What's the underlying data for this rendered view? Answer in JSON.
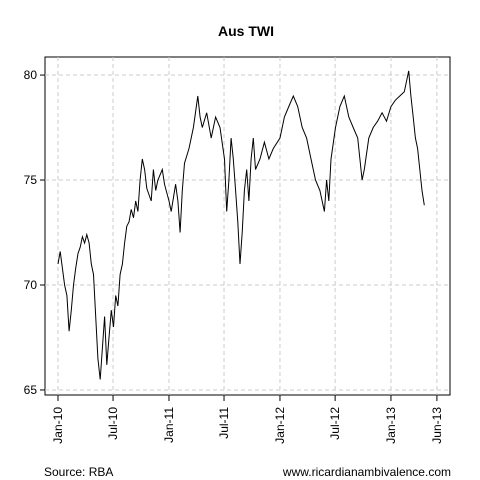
{
  "chart_data": {
    "type": "line",
    "title": "Aus TWI",
    "source": "Source: RBA",
    "credit": "www.ricardianambivalence.com",
    "x": [
      2010.0,
      2010.02,
      2010.04,
      2010.06,
      2010.08,
      2010.1,
      2010.12,
      2010.14,
      2010.16,
      2010.18,
      2010.2,
      2010.22,
      2010.24,
      2010.26,
      2010.28,
      2010.3,
      2010.32,
      2010.34,
      2010.36,
      2010.38,
      2010.4,
      2010.42,
      2010.44,
      2010.46,
      2010.48,
      2010.5,
      2010.52,
      2010.54,
      2010.56,
      2010.58,
      2010.6,
      2010.62,
      2010.64,
      2010.66,
      2010.68,
      2010.7,
      2010.72,
      2010.74,
      2010.76,
      2010.78,
      2010.8,
      2010.84,
      2010.86,
      2010.88,
      2010.9,
      2010.94,
      2010.96,
      2011.0,
      2011.02,
      2011.06,
      2011.08,
      2011.1,
      2011.12,
      2011.14,
      2011.18,
      2011.22,
      2011.26,
      2011.28,
      2011.3,
      2011.34,
      2011.38,
      2011.42,
      2011.46,
      2011.5,
      2011.52,
      2011.54,
      2011.56,
      2011.58,
      2011.6,
      2011.62,
      2011.64,
      2011.66,
      2011.68,
      2011.7,
      2011.72,
      2011.74,
      2011.76,
      2011.78,
      2011.82,
      2011.86,
      2011.9,
      2011.94,
      2012.0,
      2012.04,
      2012.08,
      2012.12,
      2012.16,
      2012.2,
      2012.24,
      2012.28,
      2012.32,
      2012.36,
      2012.4,
      2012.42,
      2012.44,
      2012.46,
      2012.5,
      2012.54,
      2012.58,
      2012.62,
      2012.66,
      2012.7,
      2012.72,
      2012.74,
      2012.76,
      2012.8,
      2012.84,
      2012.88,
      2012.92,
      2012.96,
      2013.0,
      2013.04,
      2013.08,
      2013.12,
      2013.16,
      2013.18,
      2013.2,
      2013.22,
      2013.24,
      2013.26,
      2013.28,
      2013.3
    ],
    "values": [
      71.0,
      71.6,
      70.8,
      70.0,
      69.5,
      67.8,
      68.8,
      70.0,
      70.8,
      71.5,
      71.8,
      72.3,
      72.0,
      72.4,
      72.0,
      71.0,
      70.5,
      68.5,
      66.5,
      65.5,
      67.0,
      68.5,
      66.2,
      67.5,
      68.8,
      68.0,
      69.5,
      69.0,
      70.5,
      71.0,
      72.0,
      72.8,
      73.0,
      73.6,
      73.2,
      74.0,
      73.5,
      75.0,
      76.0,
      75.5,
      74.6,
      74.0,
      75.5,
      74.5,
      75.0,
      75.5,
      74.8,
      74.0,
      73.5,
      74.8,
      74.0,
      72.5,
      74.5,
      75.8,
      76.5,
      77.5,
      79.0,
      78.0,
      77.5,
      78.2,
      77.0,
      78.0,
      77.5,
      76.0,
      73.5,
      75.0,
      77.0,
      76.0,
      74.5,
      73.0,
      71.0,
      72.5,
      74.5,
      75.5,
      74.0,
      76.0,
      77.0,
      75.5,
      76.0,
      76.8,
      76.0,
      76.5,
      77.0,
      78.0,
      78.5,
      79.0,
      78.5,
      77.5,
      77.0,
      76.0,
      75.0,
      74.5,
      73.5,
      75.0,
      74.0,
      76.0,
      77.5,
      78.5,
      79.0,
      78.0,
      77.5,
      77.0,
      76.0,
      75.0,
      75.5,
      77.0,
      77.5,
      77.8,
      78.2,
      77.8,
      78.5,
      78.8,
      79.0,
      79.2,
      80.2,
      79.0,
      78.0,
      77.0,
      76.5,
      75.5,
      74.5,
      73.8
    ],
    "color": "#000000",
    "xlim": [
      2009.883,
      2013.532
    ],
    "xticks": [
      {
        "value": 2010.0,
        "label": "Jan-10"
      },
      {
        "value": 2010.496,
        "label": "Jul-10"
      },
      {
        "value": 2011.0,
        "label": "Jan-11"
      },
      {
        "value": 2011.496,
        "label": "Jul-11"
      },
      {
        "value": 2012.0,
        "label": "Jan-12"
      },
      {
        "value": 2012.497,
        "label": "Jul-12"
      },
      {
        "value": 2013.0,
        "label": "Jan-13"
      },
      {
        "value": 2013.414,
        "label": "Jun-13"
      }
    ],
    "ylim": [
      64.76,
      80.86
    ],
    "yticks": [
      65,
      70,
      75,
      80
    ],
    "grid": true
  }
}
